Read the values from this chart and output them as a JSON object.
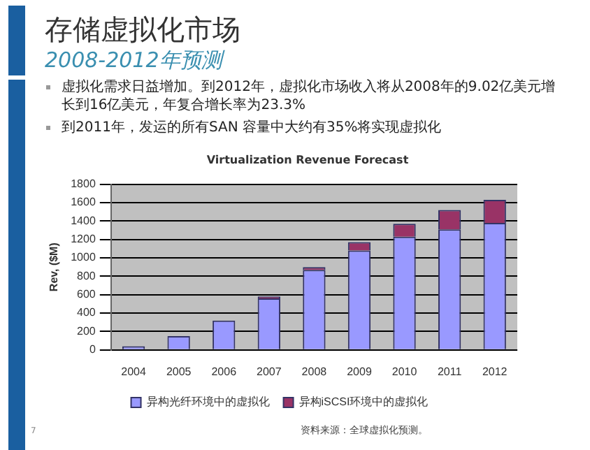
{
  "chart_data": {
    "type": "bar",
    "title": "存储虚拟化市场",
    "subtitle": "2008-2012年预测",
    "ylabel": "Rev, ($M)",
    "annotations": [
      "虚拟化需求日益增加。到2012年，虚拟化市场收入将从2008年的9.02亿美元增长到16亿美元，年复合增长率为23.3%",
      "到2011年，发运的所有SAN 容量中大约有35%将实现虚拟化",
      "Virtualization Revenue Forecast",
      "资料来源：全球虚拟化预测。",
      "7"
    ],
    "categories": [
      "2004",
      "2005",
      "2006",
      "2007",
      "2008",
      "2009",
      "2010",
      "2011",
      "2012"
    ],
    "series": [
      {
        "name": "异构光纤环境中的虚拟化",
        "color": "#9999ff",
        "values": [
          40,
          150,
          320,
          560,
          870,
          1080,
          1230,
          1310,
          1380
        ]
      },
      {
        "name": "异构iSCSI环境中的虚拟化",
        "color": "#993366",
        "values": [
          0,
          0,
          0,
          20,
          30,
          90,
          140,
          210,
          250
        ]
      }
    ],
    "stacked": true,
    "ylim": [
      0,
      1800
    ],
    "yticks": [
      0,
      200,
      400,
      600,
      800,
      1000,
      1200,
      1400,
      1600,
      1800
    ],
    "grid": "y",
    "legend": "bottom"
  }
}
